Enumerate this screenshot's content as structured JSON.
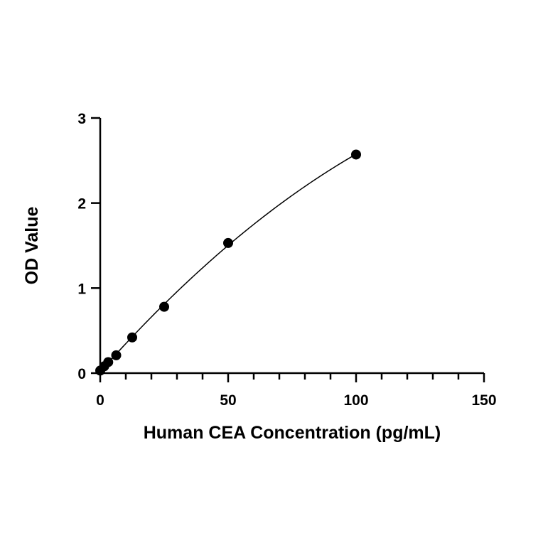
{
  "chart_data": {
    "type": "scatter",
    "title": "",
    "xlabel": "Human CEA Concentration (pg/mL)",
    "ylabel": "OD Value",
    "xlim": [
      0,
      150
    ],
    "ylim": [
      0,
      3
    ],
    "x_ticks": [
      0,
      50,
      100,
      150
    ],
    "x_tick_labels": [
      "0",
      "50",
      "100",
      "150"
    ],
    "x_minor_tick_step": 10,
    "y_ticks": [
      0,
      1,
      2,
      3
    ],
    "y_tick_labels": [
      "0",
      "1",
      "2",
      "3"
    ],
    "grid": false,
    "legend": "none",
    "series": [
      {
        "x": [
          0,
          1.56,
          3.13,
          6.25,
          12.5,
          25,
          50,
          100
        ],
        "y": [
          0.03,
          0.08,
          0.13,
          0.21,
          0.42,
          0.78,
          1.53,
          2.57
        ],
        "fit_curve": true
      }
    ],
    "colors": {
      "points": "#000000",
      "curve": "#000000",
      "axes": "#000000"
    }
  }
}
